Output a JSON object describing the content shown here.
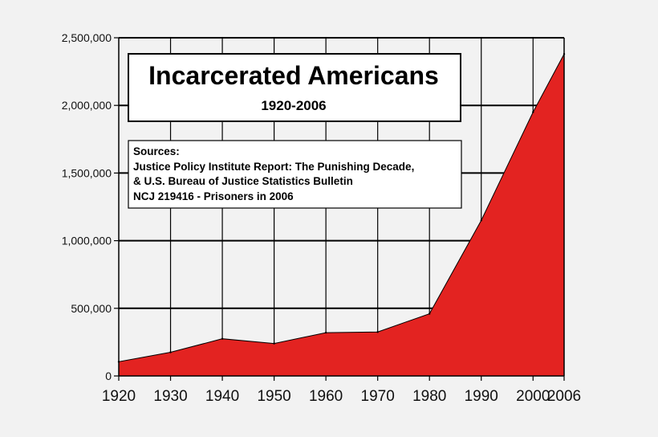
{
  "chart_data": {
    "type": "area",
    "title": "Incarcerated Americans",
    "subtitle": "1920-2006",
    "sources": [
      "Sources:",
      "Justice Policy Institute Report: The Punishing Decade,",
      "& U.S. Bureau of Justice Statistics Bulletin",
      "NCJ 219416 - Prisoners in 2006"
    ],
    "x": [
      1920,
      1930,
      1940,
      1950,
      1960,
      1970,
      1980,
      1990,
      2000,
      2006
    ],
    "values": [
      105000,
      175000,
      275000,
      240000,
      320000,
      325000,
      460000,
      1150000,
      1950000,
      2380000
    ],
    "x_tick_labels": [
      "1920",
      "1930",
      "1940",
      "1950",
      "1960",
      "1970",
      "1980",
      "1990",
      "2000",
      "2006"
    ],
    "y_ticks": [
      0,
      500000,
      1000000,
      1500000,
      2000000,
      2500000
    ],
    "y_tick_labels": [
      "0",
      "500,000",
      "1,000,000",
      "1,500,000",
      "2,000,000",
      "2,500,000"
    ],
    "xlim": [
      1920,
      2006
    ],
    "ylim": [
      0,
      2500000
    ],
    "grid": true,
    "xlabel": "",
    "ylabel": "",
    "colors": {
      "area": "#e32321",
      "grid": "#000000",
      "background": "#f2f2f2"
    }
  }
}
